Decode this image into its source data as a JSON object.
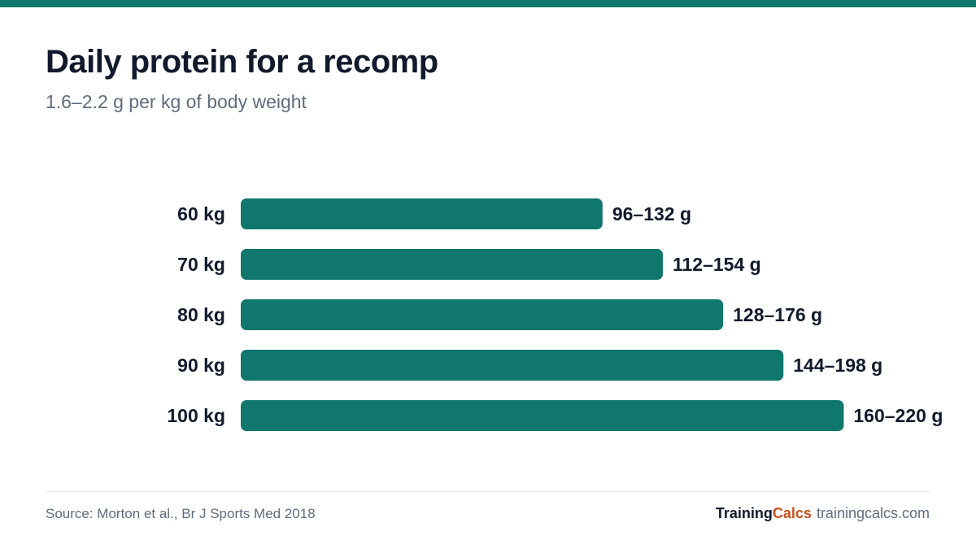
{
  "header": {
    "title": "Daily protein for a recomp",
    "subtitle": "1.6–2.2 g per kg of body weight"
  },
  "colors": {
    "bar": "#10776c",
    "accent_top": "#10776c",
    "brand_accent": "#c4501c"
  },
  "chart_data": {
    "type": "bar",
    "orientation": "horizontal",
    "categories": [
      "60 kg",
      "70 kg",
      "80 kg",
      "90 kg",
      "100 kg"
    ],
    "values": [
      132,
      154,
      176,
      198,
      220
    ],
    "data_labels": [
      "96–132 g",
      "112–154 g",
      "128–176 g",
      "144–198 g",
      "160–220 g"
    ],
    "title": "Daily protein for a recomp",
    "subtitle": "1.6–2.2 g per kg of body weight",
    "xlabel": "",
    "ylabel": "",
    "xlim": [
      0,
      220
    ],
    "grid": false,
    "legend": "none"
  },
  "footer": {
    "source": "Source: Morton et al., Br J Sports Med 2018",
    "brand_part1": "Training",
    "brand_part2": "Calcs",
    "url": "trainingcalcs.com"
  }
}
